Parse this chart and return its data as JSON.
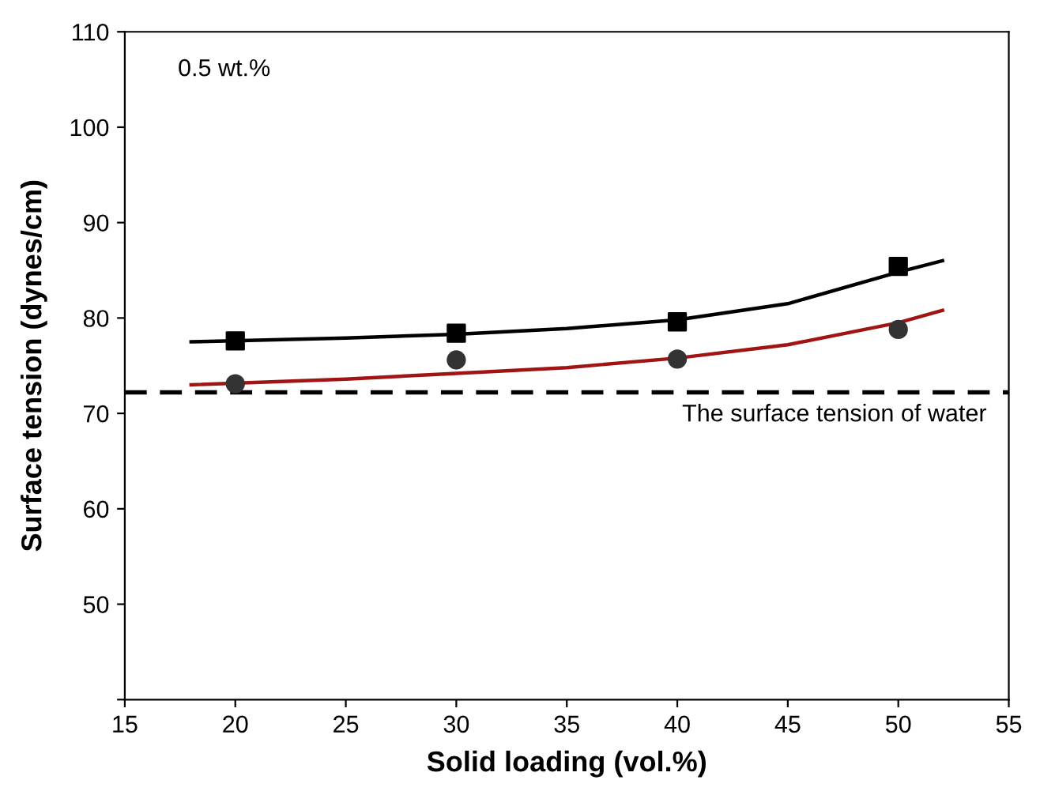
{
  "chart_data": {
    "type": "scatter",
    "xlabel": "Solid loading (vol.%)",
    "ylabel": "Surface tension (dynes/cm)",
    "xlim": [
      15,
      55
    ],
    "xticks": [
      15,
      20,
      25,
      30,
      35,
      40,
      45,
      50,
      55
    ],
    "ylim": [
      40,
      110
    ],
    "yticks": [
      {
        "value": 40,
        "label": null
      },
      50,
      60,
      70,
      80,
      90,
      100,
      110
    ],
    "annotations": [
      "0.5 wt.%"
    ],
    "ref_lines": [
      {
        "axis": "y",
        "value": 72.2,
        "label": "The surface tension of water",
        "color": "#000000",
        "line_style": "dashed"
      }
    ],
    "series": [
      {
        "marker": "square",
        "color": "#000000",
        "x": [
          20,
          30,
          40,
          50
        ],
        "values": [
          77.6,
          78.4,
          79.6,
          85.4
        ]
      },
      {
        "marker": "circle",
        "color": "#333333",
        "x": [
          20,
          30,
          40,
          50
        ],
        "values": [
          73.1,
          75.6,
          75.7,
          78.8
        ]
      },
      {
        "type": "line",
        "color": "#000000",
        "x": [
          18,
          25,
          30,
          35,
          40,
          45,
          50,
          52
        ],
        "values": [
          77.5,
          77.9,
          78.3,
          78.9,
          79.8,
          81.5,
          84.8,
          86.0
        ]
      },
      {
        "type": "line",
        "color": "#a01414",
        "x": [
          18,
          25,
          30,
          35,
          40,
          45,
          50,
          52
        ],
        "values": [
          73.0,
          73.6,
          74.2,
          74.8,
          75.8,
          77.2,
          79.5,
          80.8
        ]
      }
    ]
  }
}
